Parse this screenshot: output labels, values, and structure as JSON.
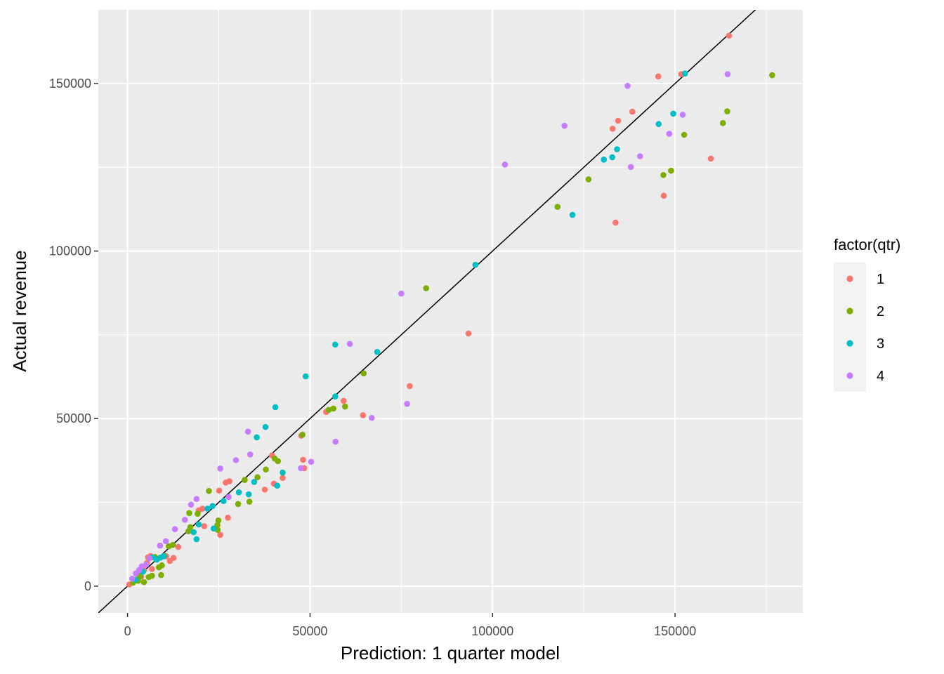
{
  "chart_data": {
    "type": "scatter",
    "title": "",
    "xlabel": "Prediction: 1 quarter model",
    "ylabel": "Actual revenue",
    "xlim": [
      -8000,
      185000
    ],
    "ylim": [
      -8000,
      172000
    ],
    "x_ticks": [
      0,
      50000,
      100000,
      150000
    ],
    "y_ticks": [
      0,
      50000,
      100000,
      150000
    ],
    "x_tick_labels": [
      "0",
      "50000",
      "100000",
      "150000"
    ],
    "y_tick_labels": [
      "0",
      "50000",
      "100000",
      "150000"
    ],
    "grid": true,
    "legend_placement": "right",
    "legend_title": "factor(qtr)",
    "reference_line": {
      "slope": 1,
      "intercept": 0,
      "color": "#000000"
    },
    "series": [
      {
        "name": "1",
        "color": "#F8766D",
        "points": [
          [
            164800,
            164300
          ],
          [
            151700,
            152800
          ],
          [
            145400,
            152100
          ],
          [
            138300,
            141600
          ],
          [
            134400,
            138900
          ],
          [
            132900,
            136500
          ],
          [
            159800,
            127600
          ],
          [
            146900,
            116500
          ],
          [
            133700,
            108500
          ],
          [
            93400,
            75400
          ],
          [
            77300,
            59700
          ],
          [
            59200,
            55300
          ],
          [
            54400,
            52000
          ],
          [
            64500,
            51000
          ],
          [
            48100,
            37700
          ],
          [
            48400,
            35200
          ],
          [
            47600,
            44900
          ],
          [
            39600,
            39000
          ],
          [
            42500,
            32300
          ],
          [
            40100,
            30600
          ],
          [
            37600,
            28800
          ],
          [
            27900,
            31300
          ],
          [
            26900,
            30900
          ],
          [
            25100,
            28500
          ],
          [
            27500,
            20400
          ],
          [
            25400,
            15300
          ],
          [
            20500,
            23100
          ],
          [
            19500,
            22600
          ],
          [
            21000,
            17900
          ],
          [
            13900,
            11700
          ],
          [
            12600,
            8400
          ],
          [
            11600,
            7500
          ],
          [
            10600,
            8900
          ],
          [
            6300,
            9000
          ],
          [
            5600,
            8600
          ],
          [
            6700,
            5100
          ],
          [
            5300,
            6900
          ],
          [
            4500,
            4700
          ],
          [
            3700,
            2800
          ],
          [
            2900,
            3400
          ],
          [
            1700,
            1400
          ],
          [
            500,
            500
          ]
        ]
      },
      {
        "name": "2",
        "color": "#7CAE00",
        "points": [
          [
            176600,
            152500
          ],
          [
            164300,
            141700
          ],
          [
            163100,
            138200
          ],
          [
            152500,
            134700
          ],
          [
            148900,
            124000
          ],
          [
            146800,
            122700
          ],
          [
            126300,
            121400
          ],
          [
            117800,
            113200
          ],
          [
            81800,
            88900
          ],
          [
            64700,
            63500
          ],
          [
            59600,
            53600
          ],
          [
            56400,
            53000
          ],
          [
            55100,
            52600
          ],
          [
            47900,
            45200
          ],
          [
            41200,
            37300
          ],
          [
            40300,
            38100
          ],
          [
            37900,
            34800
          ],
          [
            35600,
            32500
          ],
          [
            33400,
            25200
          ],
          [
            32100,
            31700
          ],
          [
            30300,
            24500
          ],
          [
            24900,
            19600
          ],
          [
            24600,
            18200
          ],
          [
            24700,
            16800
          ],
          [
            22300,
            28400
          ],
          [
            19200,
            21600
          ],
          [
            17200,
            17600
          ],
          [
            16900,
            21800
          ],
          [
            16700,
            16400
          ],
          [
            12400,
            12300
          ],
          [
            11300,
            11900
          ],
          [
            10100,
            9000
          ],
          [
            9400,
            6200
          ],
          [
            9200,
            3300
          ],
          [
            8600,
            5600
          ],
          [
            7500,
            8700
          ],
          [
            6700,
            3100
          ],
          [
            5800,
            2700
          ],
          [
            4500,
            1200
          ],
          [
            3500,
            2900
          ],
          [
            2900,
            1600
          ],
          [
            1500,
            1000
          ]
        ]
      },
      {
        "name": "3",
        "color": "#00BFC4",
        "points": [
          [
            152700,
            153000
          ],
          [
            149500,
            141000
          ],
          [
            145500,
            137900
          ],
          [
            134100,
            130400
          ],
          [
            132800,
            128000
          ],
          [
            130500,
            127300
          ],
          [
            121900,
            110800
          ],
          [
            95300,
            95900
          ],
          [
            68400,
            69900
          ],
          [
            56900,
            72100
          ],
          [
            56900,
            56600
          ],
          [
            48800,
            62600
          ],
          [
            40500,
            53400
          ],
          [
            37800,
            47500
          ],
          [
            35400,
            44400
          ],
          [
            34700,
            31100
          ],
          [
            33200,
            27400
          ],
          [
            42500,
            33900
          ],
          [
            41000,
            30000
          ],
          [
            30500,
            28000
          ],
          [
            26300,
            25400
          ],
          [
            23300,
            23900
          ],
          [
            21900,
            23100
          ],
          [
            23600,
            17200
          ],
          [
            19500,
            18400
          ],
          [
            18900,
            14000
          ],
          [
            18100,
            16100
          ],
          [
            9900,
            8900
          ],
          [
            9000,
            8500
          ],
          [
            8000,
            7900
          ],
          [
            6800,
            8600
          ],
          [
            4200,
            4300
          ],
          [
            2200,
            1900
          ]
        ]
      },
      {
        "name": "4",
        "color": "#C77CFF",
        "points": [
          [
            137000,
            149300
          ],
          [
            164400,
            152800
          ],
          [
            152100,
            140700
          ],
          [
            148400,
            135000
          ],
          [
            140400,
            128300
          ],
          [
            137900,
            125100
          ],
          [
            119700,
            137400
          ],
          [
            103400,
            125800
          ],
          [
            75000,
            87300
          ],
          [
            60900,
            72300
          ],
          [
            76600,
            54400
          ],
          [
            66900,
            50200
          ],
          [
            57000,
            43100
          ],
          [
            50300,
            37100
          ],
          [
            47500,
            35200
          ],
          [
            33000,
            46100
          ],
          [
            33600,
            39300
          ],
          [
            29700,
            37600
          ],
          [
            25400,
            35100
          ],
          [
            27700,
            26600
          ],
          [
            18900,
            26000
          ],
          [
            17400,
            24300
          ],
          [
            15700,
            19800
          ],
          [
            13000,
            17000
          ],
          [
            10500,
            13400
          ],
          [
            8900,
            12100
          ],
          [
            6000,
            8300
          ],
          [
            5100,
            6400
          ],
          [
            3900,
            5900
          ],
          [
            3200,
            4800
          ],
          [
            2300,
            3800
          ],
          [
            1300,
            2200
          ]
        ]
      }
    ]
  }
}
